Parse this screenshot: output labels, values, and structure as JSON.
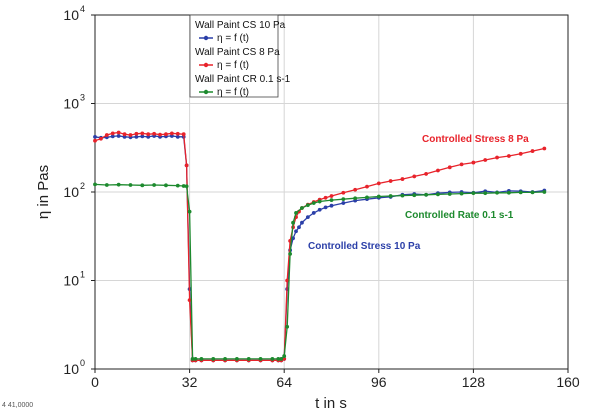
{
  "chart_data": {
    "type": "line",
    "xlabel": "t in s",
    "ylabel": "η in Pas",
    "x_scale": "linear",
    "y_scale": "log",
    "xlim": [
      0,
      160
    ],
    "ylim": [
      1,
      10000
    ],
    "x_ticks": [
      0,
      32,
      64,
      96,
      128,
      160
    ],
    "y_ticks": [
      {
        "value": 1,
        "base": "10",
        "exp": "0"
      },
      {
        "value": 10,
        "base": "10",
        "exp": "1"
      },
      {
        "value": 100,
        "base": "10",
        "exp": "2"
      },
      {
        "value": 1000,
        "base": "10",
        "exp": "3"
      },
      {
        "value": 10000,
        "base": "10",
        "exp": "4"
      }
    ],
    "grid": true,
    "legend_position": "top-center",
    "legend": [
      {
        "title": "Wall Paint CS 10 Pa",
        "entry": "η = f (t)",
        "color": "#2b3fa8"
      },
      {
        "title": "Wall Paint CS 8 Pa",
        "entry": "η = f (t)",
        "color": "#e8232b"
      },
      {
        "title": "Wall Paint CR 0.1 s-1",
        "entry": "η = f (t)",
        "color": "#1d8a2e"
      }
    ],
    "annotations": [
      {
        "text": "Controlled Stress 8 Pa",
        "color": "#e8232b"
      },
      {
        "text": "Controlled Rate 0.1 s-1",
        "color": "#1d8a2e"
      },
      {
        "text": "Controlled Stress 10 Pa",
        "color": "#2b3fa8"
      }
    ],
    "series": [
      {
        "color": "#2b3fa8",
        "x": [
          0,
          2,
          4,
          6,
          8,
          10,
          12,
          14,
          16,
          18,
          20,
          22,
          24,
          26,
          28,
          30,
          31,
          32,
          33,
          34,
          36,
          40,
          44,
          48,
          52,
          56,
          60,
          62,
          63,
          64,
          65,
          66,
          67,
          68,
          69,
          70,
          72,
          74,
          76,
          78,
          80,
          84,
          88,
          92,
          96,
          100,
          104,
          108,
          112,
          116,
          120,
          124,
          128,
          132,
          136,
          140,
          144,
          148,
          152
        ],
        "y": [
          420,
          410,
          415,
          425,
          430,
          420,
          415,
          420,
          425,
          420,
          430,
          420,
          425,
          430,
          420,
          420,
          200,
          8,
          1.25,
          1.25,
          1.25,
          1.25,
          1.25,
          1.25,
          1.25,
          1.25,
          1.25,
          1.25,
          1.25,
          1.3,
          8,
          22,
          30,
          36,
          40,
          45,
          52,
          58,
          63,
          67,
          70,
          75,
          80,
          83,
          86,
          88,
          93,
          95,
          93,
          97,
          99,
          100,
          98,
          102,
          99,
          103,
          102,
          100,
          104
        ]
      },
      {
        "color": "#e8232b",
        "x": [
          0,
          2,
          4,
          6,
          8,
          10,
          12,
          14,
          16,
          18,
          20,
          22,
          24,
          26,
          28,
          30,
          31,
          32,
          33,
          34,
          36,
          40,
          44,
          48,
          52,
          56,
          60,
          62,
          63,
          64,
          65,
          66,
          67,
          68,
          69,
          70,
          72,
          74,
          76,
          78,
          80,
          84,
          88,
          92,
          96,
          100,
          104,
          108,
          112,
          116,
          120,
          124,
          128,
          132,
          136,
          140,
          144,
          148,
          152
        ],
        "y": [
          380,
          400,
          440,
          460,
          470,
          450,
          440,
          455,
          460,
          450,
          455,
          445,
          450,
          460,
          455,
          450,
          200,
          6,
          1.25,
          1.25,
          1.25,
          1.25,
          1.25,
          1.25,
          1.25,
          1.25,
          1.25,
          1.25,
          1.25,
          1.3,
          10,
          28,
          40,
          52,
          60,
          66,
          72,
          77,
          82,
          86,
          90,
          98,
          106,
          115,
          125,
          133,
          140,
          150,
          160,
          175,
          190,
          205,
          215,
          230,
          245,
          255,
          270,
          290,
          310
        ]
      },
      {
        "color": "#1d8a2e",
        "x": [
          0,
          4,
          8,
          12,
          16,
          20,
          24,
          28,
          30,
          31,
          32,
          33,
          34,
          36,
          40,
          44,
          48,
          52,
          56,
          60,
          62,
          63,
          64,
          65,
          66,
          67,
          68,
          70,
          72,
          74,
          76,
          80,
          84,
          88,
          92,
          96,
          100,
          104,
          108,
          112,
          116,
          120,
          124,
          128,
          132,
          136,
          140,
          144,
          148,
          152
        ],
        "y": [
          122,
          120,
          121,
          120,
          119,
          120,
          119,
          118,
          117,
          116,
          60,
          1.3,
          1.3,
          1.3,
          1.3,
          1.3,
          1.3,
          1.3,
          1.3,
          1.3,
          1.3,
          1.3,
          1.4,
          3,
          20,
          45,
          58,
          66,
          71,
          75,
          78,
          81,
          83,
          85,
          87,
          89,
          90,
          91,
          92,
          93,
          94,
          95,
          96,
          97,
          97,
          98,
          98,
          99,
          99,
          100
        ]
      }
    ]
  },
  "footnote": "4 41,0000"
}
